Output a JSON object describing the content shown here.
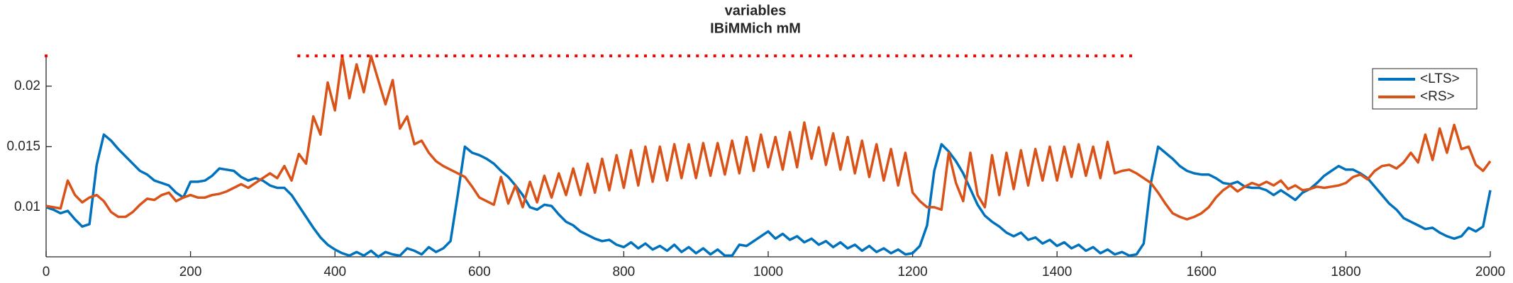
{
  "chart_data": {
    "type": "line",
    "title": "variables",
    "subtitle": "IBiMMich mM",
    "xlim": [
      0,
      2000
    ],
    "xticks": [
      0,
      200,
      400,
      600,
      800,
      1000,
      1200,
      1400,
      1600,
      1800,
      2000
    ],
    "ylim": [
      0.0059,
      0.0225
    ],
    "yticks": [
      0.01,
      0.015,
      0.02
    ],
    "legend": "upper right",
    "x": [
      0,
      10,
      20,
      30,
      40,
      50,
      60,
      70,
      80,
      90,
      100,
      110,
      120,
      130,
      140,
      150,
      160,
      170,
      180,
      190,
      200,
      210,
      220,
      230,
      240,
      250,
      260,
      270,
      280,
      290,
      300,
      310,
      320,
      330,
      340,
      350,
      360,
      370,
      380,
      390,
      400,
      410,
      420,
      430,
      440,
      450,
      460,
      470,
      480,
      490,
      500,
      510,
      520,
      530,
      540,
      550,
      560,
      570,
      580,
      590,
      600,
      610,
      620,
      630,
      640,
      650,
      660,
      670,
      680,
      690,
      700,
      710,
      720,
      730,
      740,
      750,
      760,
      770,
      780,
      790,
      800,
      810,
      820,
      830,
      840,
      850,
      860,
      870,
      880,
      890,
      900,
      910,
      920,
      930,
      940,
      950,
      960,
      970,
      980,
      990,
      1000,
      1010,
      1020,
      1030,
      1040,
      1050,
      1060,
      1070,
      1080,
      1090,
      1100,
      1110,
      1120,
      1130,
      1140,
      1150,
      1160,
      1170,
      1180,
      1190,
      1200,
      1210,
      1220,
      1230,
      1240,
      1250,
      1260,
      1270,
      1280,
      1290,
      1300,
      1310,
      1320,
      1330,
      1340,
      1350,
      1360,
      1370,
      1380,
      1390,
      1400,
      1410,
      1420,
      1430,
      1440,
      1450,
      1460,
      1470,
      1480,
      1490,
      1500,
      1510,
      1520,
      1530,
      1540,
      1550,
      1560,
      1570,
      1580,
      1590,
      1600,
      1610,
      1620,
      1630,
      1640,
      1650,
      1660,
      1670,
      1680,
      1690,
      1700,
      1710,
      1720,
      1730,
      1740,
      1750,
      1760,
      1770,
      1780,
      1790,
      1800,
      1810,
      1820,
      1830,
      1840,
      1850,
      1860,
      1870,
      1880,
      1890,
      1900,
      1910,
      1920,
      1930,
      1940,
      1950,
      1960,
      1970,
      1980,
      1990,
      2000
    ],
    "series": [
      {
        "name": "<LTS>",
        "color": "#0072bd",
        "values": [
          0.01,
          0.0098,
          0.0095,
          0.0097,
          0.009,
          0.0084,
          0.0086,
          0.0135,
          0.016,
          0.0155,
          0.0148,
          0.0142,
          0.0136,
          0.013,
          0.0127,
          0.0122,
          0.012,
          0.0118,
          0.0112,
          0.0108,
          0.0121,
          0.0121,
          0.0122,
          0.0126,
          0.0132,
          0.0131,
          0.013,
          0.0125,
          0.0122,
          0.0124,
          0.0122,
          0.0118,
          0.0116,
          0.0116,
          0.011,
          0.0101,
          0.0092,
          0.0083,
          0.0075,
          0.0069,
          0.0065,
          0.0062,
          0.006,
          0.0063,
          0.006,
          0.0064,
          0.0059,
          0.0063,
          0.0061,
          0.006,
          0.0066,
          0.0064,
          0.0061,
          0.0067,
          0.0063,
          0.0066,
          0.0072,
          0.011,
          0.015,
          0.0145,
          0.0143,
          0.014,
          0.0136,
          0.013,
          0.0125,
          0.0118,
          0.011,
          0.01,
          0.0098,
          0.0102,
          0.0101,
          0.0094,
          0.0088,
          0.0085,
          0.008,
          0.0077,
          0.0074,
          0.0072,
          0.0073,
          0.0069,
          0.0067,
          0.0071,
          0.0066,
          0.007,
          0.0065,
          0.0068,
          0.0064,
          0.0069,
          0.0063,
          0.0067,
          0.0062,
          0.0066,
          0.0061,
          0.0065,
          0.006,
          0.006,
          0.0069,
          0.0068,
          0.0072,
          0.0076,
          0.008,
          0.0074,
          0.0078,
          0.0073,
          0.0076,
          0.0071,
          0.0074,
          0.0069,
          0.0072,
          0.0067,
          0.0071,
          0.0066,
          0.0069,
          0.0064,
          0.0068,
          0.0063,
          0.0066,
          0.0062,
          0.0065,
          0.0061,
          0.0062,
          0.0068,
          0.0085,
          0.013,
          0.0152,
          0.0146,
          0.0138,
          0.0128,
          0.0115,
          0.0102,
          0.0093,
          0.0088,
          0.0084,
          0.0079,
          0.0076,
          0.0079,
          0.0073,
          0.0075,
          0.007,
          0.0073,
          0.0068,
          0.0071,
          0.0066,
          0.0069,
          0.0064,
          0.0067,
          0.0062,
          0.0065,
          0.0061,
          0.0063,
          0.006,
          0.0061,
          0.007,
          0.012,
          0.015,
          0.0145,
          0.014,
          0.0134,
          0.013,
          0.0128,
          0.0127,
          0.0127,
          0.0124,
          0.012,
          0.0119,
          0.0121,
          0.0117,
          0.0116,
          0.0116,
          0.0114,
          0.011,
          0.0114,
          0.011,
          0.0106,
          0.0112,
          0.0115,
          0.012,
          0.0126,
          0.013,
          0.0134,
          0.0131,
          0.0131,
          0.0128,
          0.0124,
          0.0117,
          0.011,
          0.0103,
          0.0098,
          0.0091,
          0.0088,
          0.0085,
          0.0082,
          0.0083,
          0.0079,
          0.0076,
          0.0074,
          0.0076,
          0.0083,
          0.008,
          0.0084,
          0.0114
        ]
      },
      {
        "name": "<RS>",
        "color": "#d95319",
        "values": [
          0.0101,
          0.01,
          0.0099,
          0.0122,
          0.011,
          0.0104,
          0.0108,
          0.011,
          0.0105,
          0.0096,
          0.0092,
          0.0092,
          0.0096,
          0.0102,
          0.0107,
          0.0106,
          0.011,
          0.0112,
          0.0105,
          0.0108,
          0.011,
          0.0108,
          0.0108,
          0.011,
          0.0111,
          0.0113,
          0.0116,
          0.0119,
          0.0116,
          0.012,
          0.0124,
          0.0128,
          0.0124,
          0.0134,
          0.0122,
          0.0144,
          0.0136,
          0.0175,
          0.016,
          0.0203,
          0.018,
          0.0225,
          0.019,
          0.0218,
          0.0195,
          0.0225,
          0.0205,
          0.0185,
          0.0205,
          0.0165,
          0.0175,
          0.0152,
          0.0155,
          0.0145,
          0.0138,
          0.0134,
          0.0131,
          0.0128,
          0.0125,
          0.0117,
          0.0108,
          0.0105,
          0.0102,
          0.0125,
          0.0103,
          0.0118,
          0.01,
          0.0121,
          0.0104,
          0.0126,
          0.0108,
          0.0128,
          0.011,
          0.0132,
          0.011,
          0.0136,
          0.0112,
          0.014,
          0.0114,
          0.0143,
          0.0116,
          0.0147,
          0.0118,
          0.015,
          0.0121,
          0.015,
          0.0122,
          0.0152,
          0.0124,
          0.0152,
          0.0124,
          0.0153,
          0.0126,
          0.0153,
          0.0127,
          0.0155,
          0.0128,
          0.0158,
          0.013,
          0.016,
          0.0133,
          0.0158,
          0.0131,
          0.0162,
          0.0133,
          0.017,
          0.014,
          0.0166,
          0.0135,
          0.0161,
          0.0131,
          0.0158,
          0.0128,
          0.0155,
          0.0125,
          0.0152,
          0.0122,
          0.0148,
          0.0118,
          0.0145,
          0.0112,
          0.0105,
          0.01,
          0.01,
          0.0098,
          0.0145,
          0.012,
          0.0105,
          0.0145,
          0.011,
          0.01,
          0.0143,
          0.011,
          0.0145,
          0.0115,
          0.0147,
          0.0118,
          0.0148,
          0.0122,
          0.015,
          0.0122,
          0.015,
          0.0125,
          0.0152,
          0.0126,
          0.015,
          0.0124,
          0.0154,
          0.0128,
          0.013,
          0.0131,
          0.0128,
          0.0124,
          0.012,
          0.0112,
          0.0103,
          0.0095,
          0.0092,
          0.009,
          0.0092,
          0.0095,
          0.01,
          0.0108,
          0.0114,
          0.0118,
          0.0113,
          0.0117,
          0.012,
          0.0118,
          0.0121,
          0.0118,
          0.0122,
          0.0115,
          0.0118,
          0.0114,
          0.0115,
          0.0117,
          0.0116,
          0.0117,
          0.0118,
          0.012,
          0.0125,
          0.0127,
          0.0123,
          0.013,
          0.0134,
          0.0135,
          0.0132,
          0.0137,
          0.0145,
          0.0137,
          0.016,
          0.0139,
          0.0165,
          0.0145,
          0.0168,
          0.0148,
          0.015,
          0.0135,
          0.013,
          0.0138
        ]
      }
    ],
    "events": {
      "color": "#ff0000",
      "x": [
        0,
        350,
        362,
        374,
        386,
        398,
        410,
        422,
        434,
        446,
        458,
        470,
        482,
        494,
        506,
        518,
        530,
        542,
        554,
        566,
        578,
        590,
        602,
        614,
        626,
        638,
        650,
        662,
        674,
        686,
        698,
        710,
        722,
        734,
        746,
        758,
        770,
        782,
        794,
        806,
        818,
        830,
        842,
        854,
        866,
        878,
        890,
        902,
        914,
        926,
        938,
        950,
        962,
        974,
        986,
        998,
        1010,
        1022,
        1034,
        1046,
        1058,
        1070,
        1082,
        1094,
        1106,
        1118,
        1130,
        1142,
        1154,
        1166,
        1178,
        1190,
        1202,
        1214,
        1226,
        1238,
        1250,
        1262,
        1274,
        1286,
        1298,
        1310,
        1322,
        1334,
        1346,
        1358,
        1370,
        1382,
        1394,
        1406,
        1418,
        1430,
        1442,
        1454,
        1466,
        1478,
        1490,
        1502
      ]
    }
  }
}
